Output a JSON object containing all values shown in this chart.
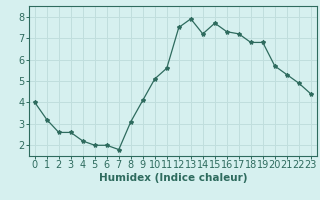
{
  "x": [
    0,
    1,
    2,
    3,
    4,
    5,
    6,
    7,
    8,
    9,
    10,
    11,
    12,
    13,
    14,
    15,
    16,
    17,
    18,
    19,
    20,
    21,
    22,
    23
  ],
  "y": [
    4.0,
    3.2,
    2.6,
    2.6,
    2.2,
    2.0,
    2.0,
    1.8,
    3.1,
    4.1,
    5.1,
    5.6,
    7.5,
    7.9,
    7.2,
    7.7,
    7.3,
    7.2,
    6.8,
    6.8,
    5.7,
    5.3,
    4.9,
    4.4
  ],
  "line_color": "#2e6b5e",
  "marker": "*",
  "marker_size": 3,
  "bg_color": "#d6f0ef",
  "grid_color": "#c0dedd",
  "xlabel": "Humidex (Indice chaleur)",
  "xlabel_fontsize": 7.5,
  "xlabel_weight": "bold",
  "yticks": [
    2,
    3,
    4,
    5,
    6,
    7,
    8
  ],
  "ylim": [
    1.5,
    8.5
  ],
  "xlim": [
    -0.5,
    23.5
  ],
  "tick_fontsize": 7.0
}
